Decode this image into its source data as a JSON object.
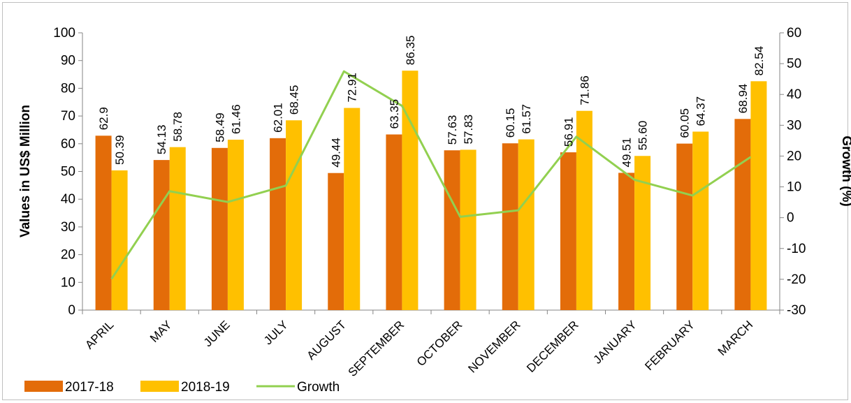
{
  "chart_data": {
    "type": "bar",
    "categories": [
      "APRIL",
      "MAY",
      "JUNE",
      "JULY",
      "AUGUST",
      "SEPTEMBER",
      "OCTOBER",
      "NOVEMBER",
      "DECEMBER",
      "JANUARY",
      "FEBRUARY",
      "MARCH"
    ],
    "series": [
      {
        "name": "2017-18",
        "type": "bar",
        "axis": "left",
        "color": "#E36C09",
        "values": [
          62.9,
          54.13,
          58.49,
          62.01,
          49.44,
          63.35,
          57.63,
          60.15,
          56.91,
          49.51,
          60.05,
          68.94
        ],
        "labels": [
          "62.9",
          "54.13",
          "58.49",
          "62.01",
          "49.44",
          "63.35",
          "57.63",
          "60.15",
          "56.91",
          "49.51",
          "60.05",
          "68.94"
        ]
      },
      {
        "name": "2018-19",
        "type": "bar",
        "axis": "left",
        "color": "#FFC000",
        "values": [
          50.39,
          58.78,
          61.46,
          68.45,
          72.91,
          86.35,
          57.83,
          61.57,
          71.86,
          55.6,
          64.37,
          82.54
        ],
        "labels": [
          "50.39",
          "58.78",
          "61.46",
          "68.45",
          "72.91",
          "86.35",
          "57.83",
          "61.57",
          "71.86",
          "55.60",
          "64.37",
          "82.54"
        ]
      },
      {
        "name": "Growth",
        "type": "line",
        "axis": "right",
        "color": "#92D050",
        "values": [
          -19.9,
          8.6,
          5.1,
          10.4,
          47.5,
          36.3,
          0.3,
          2.4,
          26.3,
          12.3,
          7.2,
          19.7
        ]
      }
    ],
    "ylabel": "Values in US$ Million",
    "y2label": "Growth (%)",
    "ylim": [
      0,
      100
    ],
    "y2lim": [
      -30,
      60
    ],
    "yticks": [
      "0",
      "10",
      "20",
      "30",
      "40",
      "50",
      "60",
      "70",
      "80",
      "90",
      "100"
    ],
    "y2ticks": [
      "-30",
      "-20",
      "-10",
      "0",
      "10",
      "20",
      "30",
      "40",
      "50",
      "60"
    ],
    "grid": false,
    "legend_position": "bottom-left"
  }
}
